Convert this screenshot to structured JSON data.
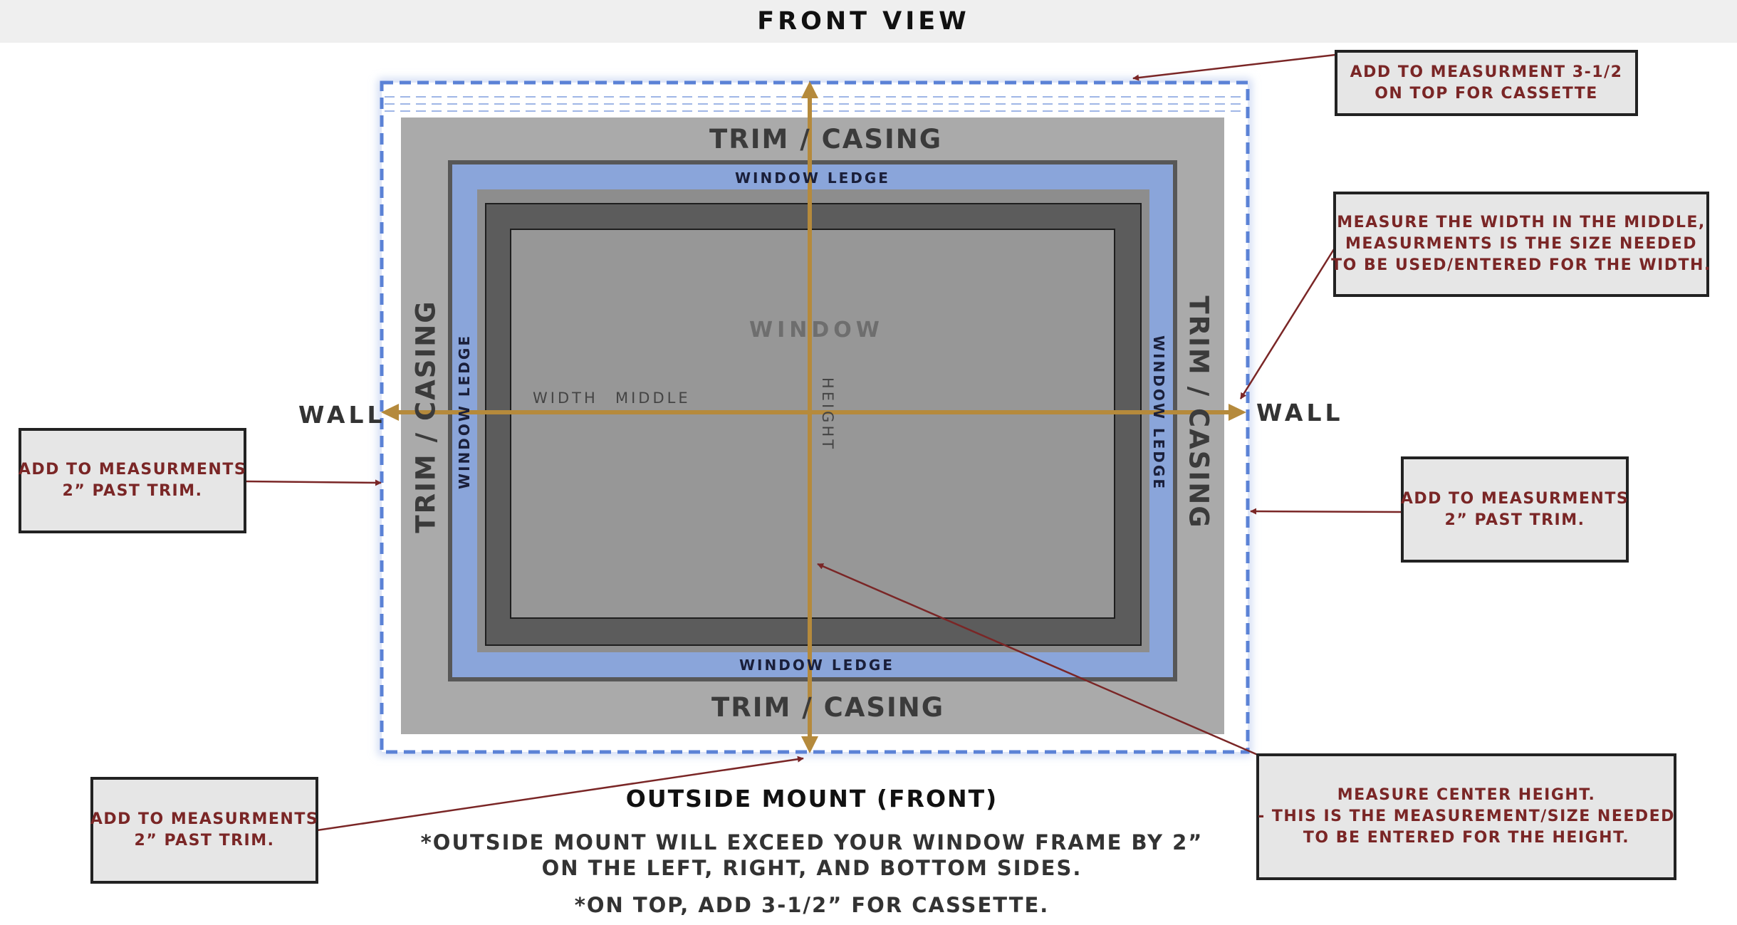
{
  "header": {
    "title": "FRONT VIEW"
  },
  "labels": {
    "trim_top": "TRIM / CASING",
    "trim_bottom": "TRIM / CASING",
    "trim_left": "TRIM / CASING",
    "trim_right": "TRIM / CASING",
    "ledge_top": "WINDOW LEDGE",
    "ledge_bottom": "WINDOW LEDGE",
    "ledge_left": "WINDOW LEDGE",
    "ledge_right": "WINDOW LEDGE",
    "window": "WINDOW",
    "width": "WIDTH",
    "middle": "MIDDLE",
    "height": "HEIGHT",
    "wall_left": "WALL",
    "wall_right": "WALL"
  },
  "notes": {
    "top_right": [
      "ADD TO MEASURMENT 3-1/2",
      "ON TOP FOR CASSETTE"
    ],
    "width": [
      "MEASURE THE WIDTH IN THE MIDDLE,",
      "MEASURMENTS IS THE SIZE NEEDED",
      "TO BE USED/ENTERED FOR THE WIDTH."
    ],
    "left": [
      "ADD TO MEASURMENTS",
      "2” PAST TRIM."
    ],
    "right": [
      "ADD TO MEASURMENTS",
      "2” PAST TRIM."
    ],
    "bottom_left": [
      "ADD TO MEASURMENTS",
      "2” PAST TRIM."
    ],
    "height": [
      "MEASURE CENTER HEIGHT.",
      "- THIS IS THE MEASUREMENT/SIZE NEEDED",
      "TO BE ENTERED FOR THE HEIGHT."
    ]
  },
  "caption": {
    "title": "OUTSIDE MOUNT (FRONT)",
    "line1": "*OUTSIDE MOUNT WILL EXCEED YOUR WINDOW FRAME  BY 2”",
    "line2": "ON THE LEFT, RIGHT, AND BOTTOM SIDES.",
    "line3": "*ON TOP, ADD 3-1/2” FOR CASSETTE."
  },
  "colors": {
    "trim": "#aaaaaa",
    "ledge": "#8aa5da",
    "window_frame": "#5c5c5c",
    "window_glass": "#979797",
    "measure_arrow": "#b58a3c",
    "dashed_border": "#5b82d6",
    "note_text": "#7a2626",
    "leader_line": "#7a2626"
  }
}
